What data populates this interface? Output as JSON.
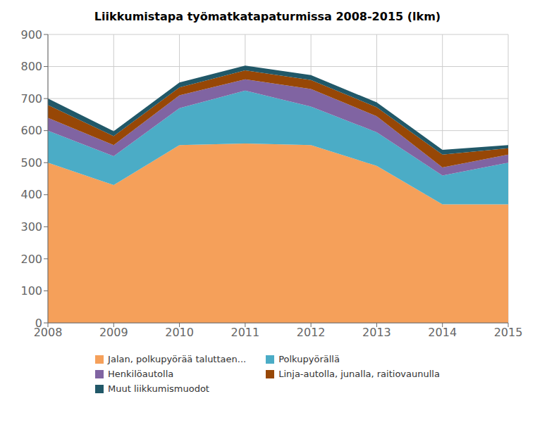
{
  "chart_data": {
    "type": "area",
    "title": "Liikkumistapa työmatkatapaturmissa 2008-2015 (lkm)",
    "x": [
      2008,
      2009,
      2010,
      2011,
      2012,
      2013,
      2014,
      2015
    ],
    "series": [
      {
        "name": "Jalan, polkupyörää taluttaen...",
        "color": "#F5A05A",
        "values": [
          500,
          430,
          555,
          560,
          555,
          490,
          370,
          370
        ]
      },
      {
        "name": "Polkupyörällä",
        "color": "#4BACC6",
        "values": [
          100,
          90,
          115,
          165,
          120,
          105,
          90,
          130
        ]
      },
      {
        "name": "Henkilöautolla",
        "color": "#8064A2",
        "values": [
          40,
          35,
          40,
          35,
          55,
          50,
          25,
          25
        ]
      },
      {
        "name": "Linja-autolla, junalla, raitiovaunulla",
        "color": "#974706",
        "values": [
          40,
          28,
          25,
          28,
          28,
          28,
          40,
          20
        ]
      },
      {
        "name": "Muut liikkumismuodot",
        "color": "#215868",
        "values": [
          20,
          15,
          15,
          15,
          15,
          15,
          15,
          10
        ]
      }
    ],
    "stacked": true,
    "xlim": [
      2008,
      2015
    ],
    "xticks": [
      2008,
      2009,
      2010,
      2011,
      2012,
      2013,
      2014,
      2015
    ],
    "ylim": [
      0,
      900
    ],
    "yticks": [
      0,
      100,
      200,
      300,
      400,
      500,
      600,
      700,
      800,
      900
    ],
    "grid": true,
    "legend": "bottom"
  }
}
